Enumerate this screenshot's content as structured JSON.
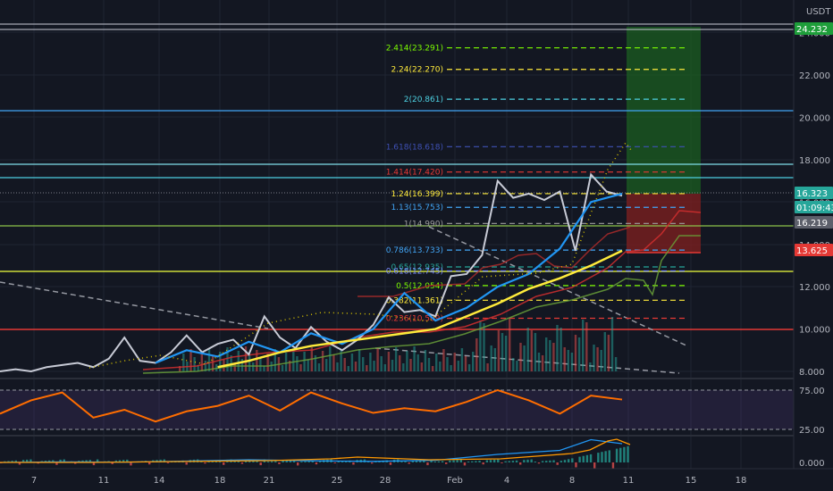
{
  "currency": "USDT",
  "colors": {
    "background": "#131722",
    "grid": "#1f2433",
    "axis_text": "#b2b5be",
    "price_line": "#c8cbd6",
    "ma_fast": "#2196f3",
    "ma_slow": "#ffeb3b",
    "rsi": "#ff6d00",
    "target_zone": "#1b5e20",
    "stop_zone": "#7b1f1f"
  },
  "price_scale": {
    "ticks": [
      "24.000",
      "22.000",
      "20.000",
      "18.000",
      "16.000",
      "14.000",
      "12.000",
      "10.000",
      "8.000"
    ],
    "badges": [
      {
        "label": "24.232",
        "color": "#1e9e3a"
      },
      {
        "label": "16.323",
        "color": "#26a69a"
      },
      {
        "label": "01:09:43",
        "color": "#26a69a"
      },
      {
        "label": "16.219",
        "color": "#5d606b"
      },
      {
        "label": "13.625",
        "color": "#e53935"
      }
    ]
  },
  "rsi_scale": {
    "ticks": [
      "75.00",
      "25.00"
    ]
  },
  "macd_scale": {
    "ticks": [
      "0.000"
    ]
  },
  "time_axis": {
    "labels": [
      "7",
      "11",
      "14",
      "18",
      "21",
      "25",
      "28",
      "Feb",
      "4",
      "8",
      "11",
      "15",
      "18"
    ]
  },
  "fib_levels": [
    {
      "label": "2.414(23.291)",
      "color": "#7cfc00"
    },
    {
      "label": "2.24(22.270)",
      "color": "#ffeb3b"
    },
    {
      "label": "2(20.861)",
      "color": "#4dd0e1"
    },
    {
      "label": "1.618(18.618)",
      "color": "#3f51b5"
    },
    {
      "label": "1.414(17.420)",
      "color": "#e53935"
    },
    {
      "label": "1.24(16.399)",
      "color": "#ffeb3b"
    },
    {
      "label": "1.13(15.753)",
      "color": "#42a5f5"
    },
    {
      "label": "1(14.990)",
      "color": "#9e9e9e"
    },
    {
      "label": "0.786(13.733)",
      "color": "#42a5f5"
    },
    {
      "label": "0.65(12.935)",
      "color": "#26a69a"
    },
    {
      "label": "0.618(12.745)",
      "color": "#7b8cff"
    },
    {
      "label": "0.5(12.054)",
      "color": "#7cfc00"
    },
    {
      "label": "0.382(11.361)",
      "color": "#ffeb3b"
    },
    {
      "label": "0.236(10.509)",
      "color": "#e53935"
    }
  ],
  "chart_data": [
    {
      "type": "line",
      "title": "",
      "ylim": [
        7.5,
        25.5
      ],
      "x_labels": [
        "7",
        "11",
        "14",
        "18",
        "21",
        "25",
        "28",
        "Feb",
        "4",
        "8",
        "11",
        "15",
        "18"
      ],
      "x_domain": [
        0,
        44
      ],
      "series": [
        {
          "color": "#c8cbd6",
          "x": [
            0,
            1,
            2,
            3,
            4,
            5,
            6,
            7,
            8,
            9,
            10,
            11,
            12,
            13,
            14,
            15,
            16,
            17,
            18,
            19,
            20,
            21,
            22,
            23,
            24,
            25,
            26,
            27,
            28,
            29,
            30,
            31,
            32,
            33,
            34,
            35,
            36,
            37,
            38,
            39,
            40
          ],
          "y": [
            8.0,
            8.1,
            8.0,
            8.2,
            8.3,
            8.4,
            8.2,
            8.6,
            9.6,
            8.5,
            8.4,
            8.9,
            9.7,
            8.9,
            9.3,
            9.5,
            8.8,
            10.6,
            9.6,
            9.1,
            10.1,
            9.4,
            9.0,
            9.5,
            10.2,
            11.5,
            10.8,
            10.9,
            10.6,
            12.5,
            12.6,
            13.5,
            17.0,
            16.2,
            16.4,
            16.1,
            16.5,
            13.7,
            17.3,
            16.5,
            16.3
          ]
        },
        {
          "color": "#2196f3",
          "x": [
            10,
            12,
            14,
            16,
            18,
            20,
            22,
            24,
            26,
            28,
            30,
            32,
            34,
            36,
            38,
            40
          ],
          "y": [
            8.4,
            9.0,
            8.7,
            9.4,
            8.9,
            9.8,
            9.3,
            10.0,
            11.7,
            10.4,
            11.0,
            12.0,
            12.6,
            13.8,
            16.0,
            16.4
          ]
        },
        {
          "color": "#ffeb3b",
          "x": [
            14,
            16,
            18,
            20,
            22,
            24,
            26,
            28,
            30,
            32,
            34,
            36,
            38,
            40
          ],
          "y": [
            8.2,
            8.5,
            8.9,
            9.2,
            9.4,
            9.6,
            9.8,
            10.0,
            10.6,
            11.2,
            11.9,
            12.4,
            13.0,
            13.7
          ]
        }
      ]
    },
    {
      "type": "line",
      "title": "",
      "ylim": [
        15,
        90
      ],
      "series": [
        {
          "color": "#ff6d00",
          "x": [
            0,
            2,
            4,
            6,
            8,
            10,
            12,
            14,
            16,
            18,
            20,
            22,
            24,
            26,
            28,
            30,
            32,
            34,
            36,
            38,
            40
          ],
          "y": [
            45,
            62,
            72,
            40,
            50,
            35,
            48,
            55,
            68,
            49,
            72,
            58,
            46,
            52,
            48,
            60,
            75,
            62,
            45,
            68,
            63
          ]
        }
      ]
    },
    {
      "type": "line",
      "title": "",
      "series": [
        {
          "color": "#2196f3",
          "x": [
            0,
            4,
            8,
            12,
            16,
            20,
            24,
            28,
            32,
            36,
            38,
            40
          ],
          "y": [
            0.0,
            0.02,
            0.01,
            0.05,
            0.1,
            0.06,
            0.04,
            0.08,
            0.3,
            0.45,
            0.85,
            0.7
          ]
        }
      ]
    }
  ]
}
